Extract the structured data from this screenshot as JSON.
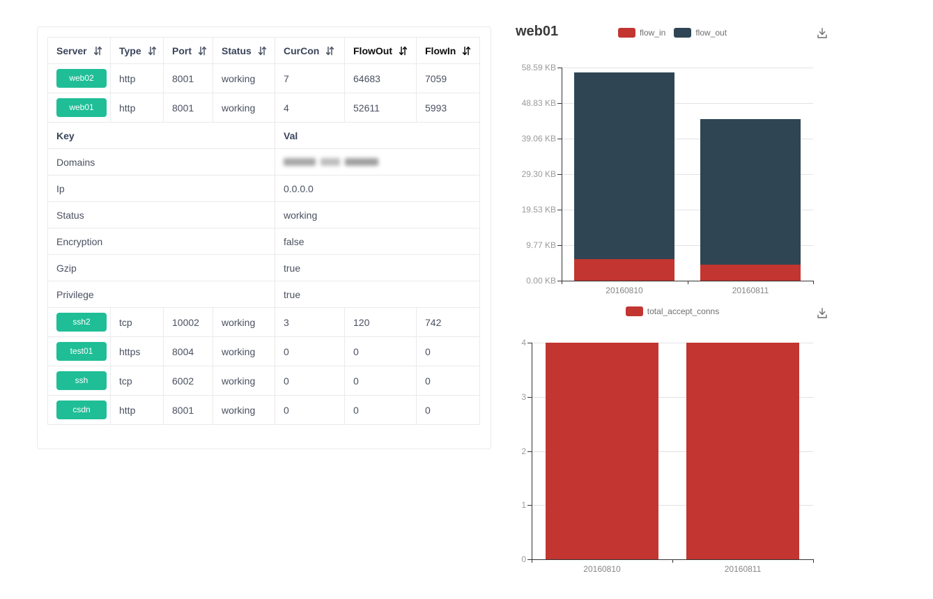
{
  "table": {
    "badge_color": "#1fbe96",
    "headers": [
      {
        "label": "Server",
        "sortable": true,
        "emphasis": false
      },
      {
        "label": "Type",
        "sortable": true,
        "emphasis": false
      },
      {
        "label": "Port",
        "sortable": true,
        "emphasis": false
      },
      {
        "label": "Status",
        "sortable": true,
        "emphasis": false
      },
      {
        "label": "CurCon",
        "sortable": true,
        "emphasis": false
      },
      {
        "label": "FlowOut",
        "sortable": true,
        "emphasis": true
      },
      {
        "label": "FlowIn",
        "sortable": true,
        "emphasis": true
      }
    ],
    "rows_top": [
      {
        "server": "web02",
        "type": "http",
        "port": "8001",
        "status": "working",
        "curcon": "7",
        "flowout": "64683",
        "flowin": "7059"
      },
      {
        "server": "web01",
        "type": "http",
        "port": "8001",
        "status": "working",
        "curcon": "4",
        "flowout": "52611",
        "flowin": "5993"
      }
    ],
    "kv_header": {
      "key": "Key",
      "val": "Val"
    },
    "kv_rows": [
      {
        "key": "Domains",
        "val": "",
        "redacted": true
      },
      {
        "key": "Ip",
        "val": "0.0.0.0"
      },
      {
        "key": "Status",
        "val": "working"
      },
      {
        "key": "Encryption",
        "val": "false"
      },
      {
        "key": "Gzip",
        "val": "true"
      },
      {
        "key": "Privilege",
        "val": "true"
      }
    ],
    "rows_bottom": [
      {
        "server": "ssh2",
        "type": "tcp",
        "port": "10002",
        "status": "working",
        "curcon": "3",
        "flowout": "120",
        "flowin": "742"
      },
      {
        "server": "test01",
        "type": "https",
        "port": "8004",
        "status": "working",
        "curcon": "0",
        "flowout": "0",
        "flowin": "0"
      },
      {
        "server": "ssh",
        "type": "tcp",
        "port": "6002",
        "status": "working",
        "curcon": "0",
        "flowout": "0",
        "flowin": "0"
      },
      {
        "server": "csdn",
        "type": "http",
        "port": "8001",
        "status": "working",
        "curcon": "0",
        "flowout": "0",
        "flowin": "0"
      }
    ]
  },
  "chart_data": [
    {
      "type": "bar",
      "title": "web01",
      "stacked": true,
      "categories": [
        "20160810",
        "20160811"
      ],
      "series": [
        {
          "name": "flow_in",
          "color": "#c23531",
          "values": [
            5.85,
            4.49
          ]
        },
        {
          "name": "flow_out",
          "color": "#2f4554",
          "values": [
            51.38,
            39.94
          ]
        }
      ],
      "values_unit": "KB",
      "ylim": [
        0,
        58.59
      ],
      "yticks": [
        "58.59 KB",
        "48.83 KB",
        "39.06 KB",
        "29.30 KB",
        "19.53 KB",
        "9.77 KB",
        "0.00 KB"
      ],
      "legend_position": "top",
      "grid": true
    },
    {
      "type": "bar",
      "stacked": false,
      "categories": [
        "20160810",
        "20160811"
      ],
      "series": [
        {
          "name": "total_accept_conns",
          "color": "#c23531",
          "values": [
            4,
            4
          ]
        }
      ],
      "ylim": [
        0,
        4
      ],
      "yticks": [
        "4",
        "3",
        "2",
        "1",
        "0"
      ],
      "legend_position": "top",
      "grid": true
    }
  ],
  "icons": {
    "sort_icon": "sort-arrows",
    "download_icon": "save-as-image"
  }
}
